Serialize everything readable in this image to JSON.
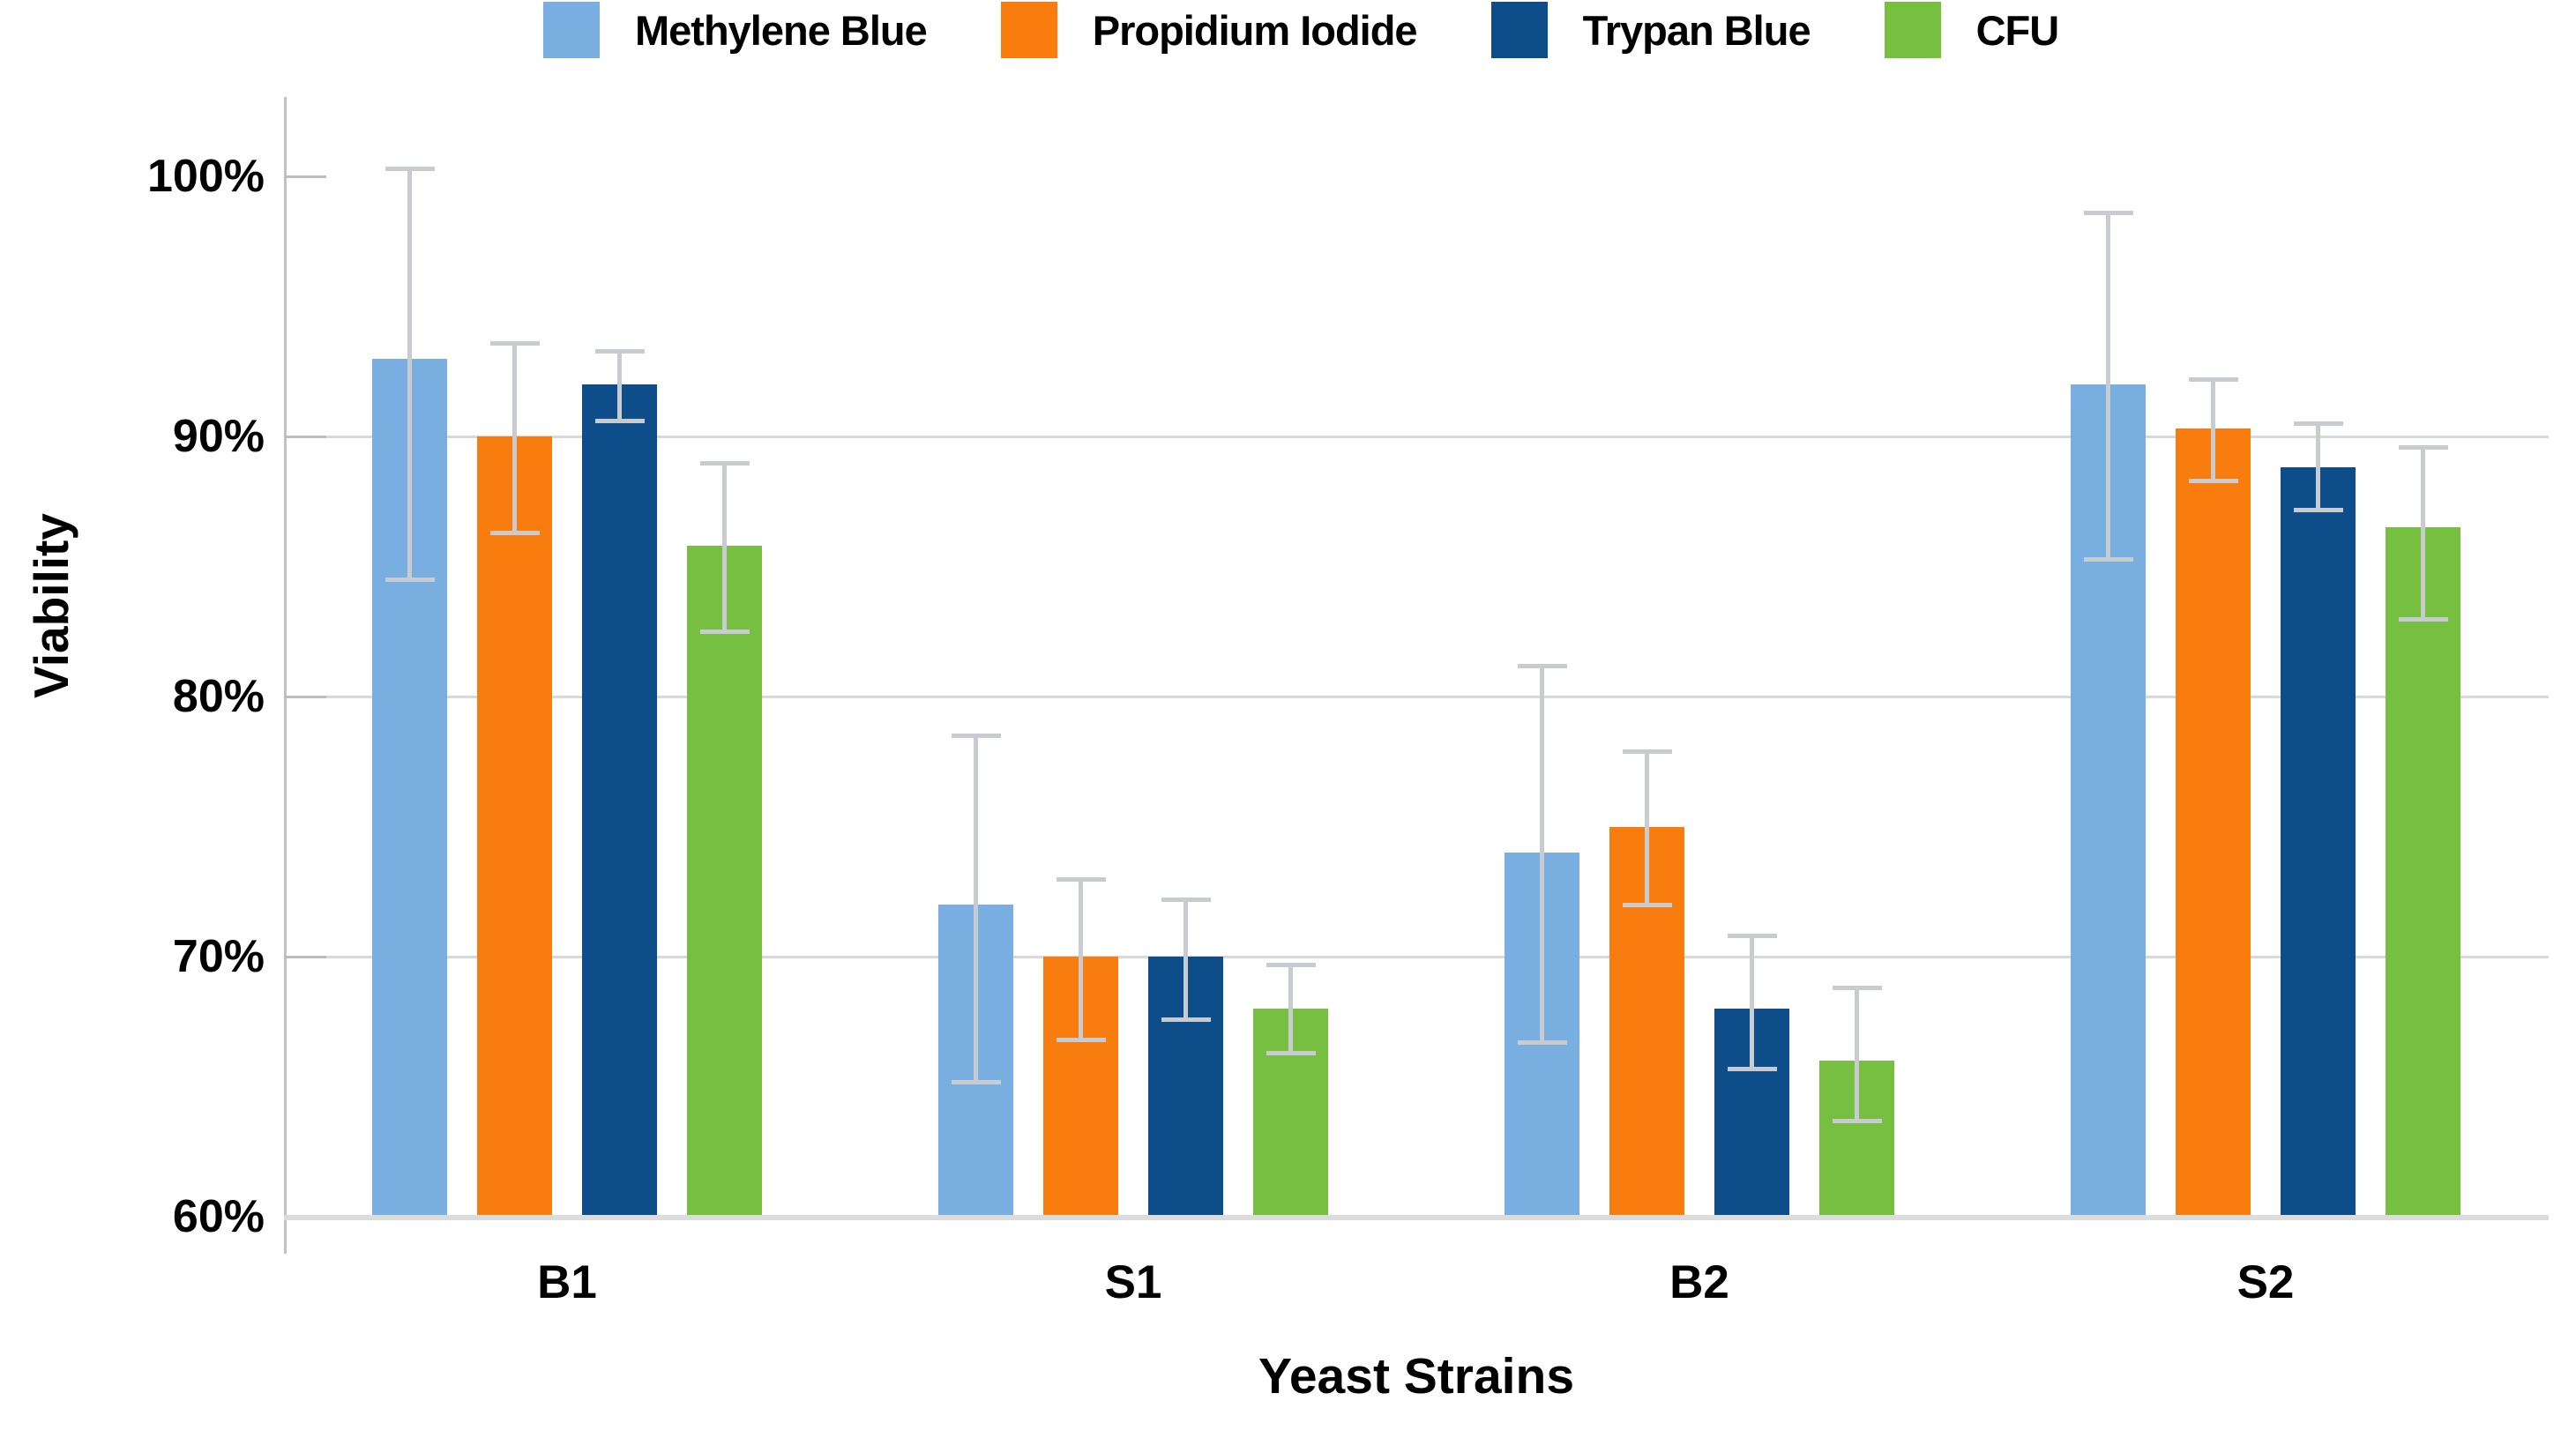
{
  "chart_data": {
    "type": "bar",
    "title": "",
    "xlabel": "Yeast Strains",
    "ylabel": "Viability",
    "categories": [
      "B1",
      "S1",
      "B2",
      "S2"
    ],
    "ylim": [
      60,
      103
    ],
    "y_ticks": [
      {
        "label": "100%",
        "value": 100
      },
      {
        "label": "90%",
        "value": 90
      },
      {
        "label": "80%",
        "value": 80
      },
      {
        "label": "70%",
        "value": 70
      },
      {
        "label": "60%",
        "value": 60
      }
    ],
    "grid_values": [
      90,
      80,
      70
    ],
    "legend_position": "top",
    "series": [
      {
        "name": "Methylene Blue",
        "color": "#79AFE0",
        "values": [
          93,
          72,
          74,
          92
        ],
        "error_up": [
          7.3,
          6.5,
          7.2,
          6.6
        ],
        "error_down": [
          8.5,
          6.8,
          7.3,
          6.7
        ]
      },
      {
        "name": "Propidium Iodide",
        "color": "#F87C0E",
        "values": [
          90,
          70,
          75,
          90.3
        ],
        "error_up": [
          3.6,
          3.0,
          2.9,
          1.9
        ],
        "error_down": [
          3.7,
          3.2,
          3.0,
          2.0
        ]
      },
      {
        "name": "Trypan Blue",
        "color": "#0D4D8A",
        "values": [
          92,
          70,
          68,
          88.8
        ],
        "error_up": [
          1.3,
          2.2,
          2.8,
          1.7
        ],
        "error_down": [
          1.4,
          2.4,
          2.3,
          1.6
        ]
      },
      {
        "name": "CFU",
        "color": "#77BF41",
        "values": [
          85.8,
          68,
          66,
          86.5
        ],
        "error_up": [
          3.2,
          1.7,
          2.8,
          3.1
        ],
        "error_down": [
          3.3,
          1.7,
          2.3,
          3.5
        ]
      }
    ],
    "error_bar_color": "#c8ccd0",
    "gridline_color": "#d9d9d9",
    "axis_color": "#c2c2c2",
    "baseline_color": "#dcdcdc",
    "text_color": "#000000"
  }
}
